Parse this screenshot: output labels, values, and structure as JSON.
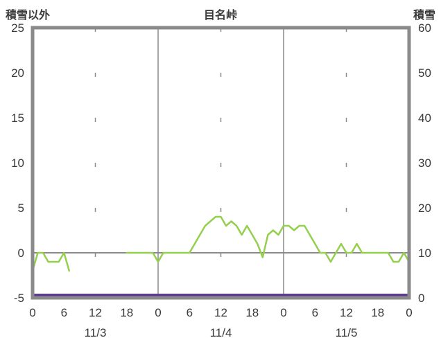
{
  "header": {
    "left_axis_title": "積雪以外",
    "title": "目名峠",
    "right_axis_title": "積雪"
  },
  "colors": {
    "frame": "#8a8a8a",
    "grid": "#8a8a8a",
    "zero_line": "#8a8a8a",
    "text": "#3a3a3a",
    "series_other": "#94cf4e",
    "series_snow": "#5b3a93"
  },
  "chart_data": {
    "type": "line",
    "title": "目名峠",
    "left_axis": {
      "label": "積雪以外",
      "min": -5,
      "max": 25,
      "ticks": [
        25,
        20,
        15,
        10,
        5,
        0,
        -5
      ]
    },
    "right_axis": {
      "label": "積雪",
      "min": 0,
      "max": 60,
      "ticks": [
        60,
        50,
        40,
        30,
        20,
        10,
        0
      ]
    },
    "x_axis": {
      "min": 0,
      "max": 72,
      "tick_hours": [
        0,
        6,
        12,
        18,
        24,
        30,
        36,
        42,
        48,
        54,
        60,
        66,
        72
      ],
      "tick_labels": [
        "0",
        "6",
        "12",
        "18",
        "0",
        "6",
        "12",
        "18",
        "0",
        "6",
        "12",
        "18",
        "0"
      ],
      "day_labels": [
        {
          "label": "11/3",
          "hour": 12
        },
        {
          "label": "11/4",
          "hour": 36
        },
        {
          "label": "11/5",
          "hour": 60
        }
      ],
      "solid_grid_hours": [
        24,
        48
      ],
      "dashed_grid_hours": [
        12,
        36,
        60
      ]
    },
    "zero_line_left_value": 0,
    "series": [
      {
        "name": "積雪以外",
        "axis": "left",
        "color": "#94cf4e",
        "width": 2.5,
        "points": [
          [
            0,
            -2
          ],
          [
            1,
            0
          ],
          [
            2,
            0
          ],
          [
            3,
            -1
          ],
          [
            4,
            -1
          ],
          [
            5,
            -1
          ],
          [
            6,
            0
          ],
          [
            7,
            -2
          ],
          [
            8,
            null
          ],
          [
            18,
            0
          ],
          [
            19,
            0
          ],
          [
            20,
            0
          ],
          [
            21,
            0
          ],
          [
            22,
            0
          ],
          [
            23,
            0
          ],
          [
            24,
            -1
          ],
          [
            25,
            0
          ],
          [
            26,
            0
          ],
          [
            27,
            0
          ],
          [
            28,
            0
          ],
          [
            29,
            0
          ],
          [
            30,
            0
          ],
          [
            31,
            1
          ],
          [
            32,
            2
          ],
          [
            33,
            3
          ],
          [
            34,
            3.5
          ],
          [
            35,
            4
          ],
          [
            36,
            4
          ],
          [
            37,
            3
          ],
          [
            38,
            3.5
          ],
          [
            39,
            3
          ],
          [
            40,
            2
          ],
          [
            41,
            3
          ],
          [
            42,
            2
          ],
          [
            43,
            1
          ],
          [
            44,
            -0.5
          ],
          [
            45,
            2
          ],
          [
            46,
            2.5
          ],
          [
            47,
            2
          ],
          [
            48,
            3
          ],
          [
            49,
            3
          ],
          [
            50,
            2.5
          ],
          [
            51,
            3
          ],
          [
            52,
            3
          ],
          [
            53,
            2
          ],
          [
            54,
            1
          ],
          [
            55,
            0
          ],
          [
            56,
            0
          ],
          [
            57,
            -1
          ],
          [
            58,
            0
          ],
          [
            59,
            1
          ],
          [
            60,
            0
          ],
          [
            61,
            0
          ],
          [
            62,
            1
          ],
          [
            63,
            0
          ],
          [
            64,
            0
          ],
          [
            65,
            0
          ],
          [
            66,
            0
          ],
          [
            67,
            0
          ],
          [
            68,
            0
          ],
          [
            69,
            -1
          ],
          [
            70,
            -1
          ],
          [
            71,
            0
          ],
          [
            72,
            -1
          ]
        ]
      },
      {
        "name": "積雪",
        "axis": "right",
        "color": "#5b3a93",
        "width": 4,
        "points": [
          [
            0,
            0
          ],
          [
            72,
            0
          ]
        ]
      }
    ]
  }
}
